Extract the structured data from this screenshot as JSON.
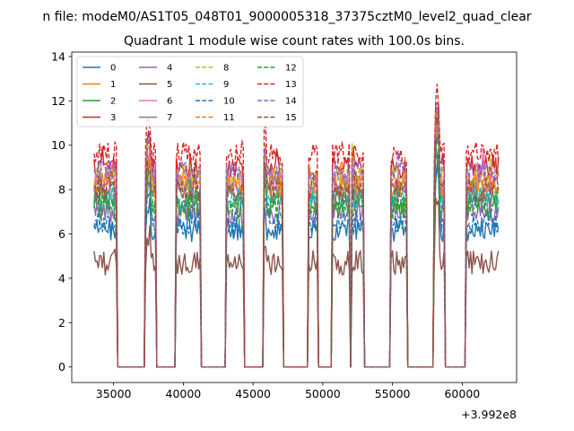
{
  "chart_data": {
    "type": "line",
    "suptitle": "n file: modeM0/AS1T05_048T01_9000005318_37375cztM0_level2_quad_clear",
    "title": "Quadrant 1 module wise count rates with 100.0s bins.",
    "xlabel": "",
    "ylabel": "",
    "x_offset_label": "+3.992e8",
    "xlim": [
      32000,
      63900
    ],
    "ylim": [
      -0.7,
      14.2
    ],
    "xticks": [
      35000,
      40000,
      45000,
      50000,
      55000,
      60000
    ],
    "xtick_labels": [
      "35000",
      "40000",
      "45000",
      "50000",
      "55000",
      "60000"
    ],
    "yticks": [
      0,
      2,
      4,
      6,
      8,
      10,
      12,
      14
    ],
    "ytick_labels": [
      "0",
      "2",
      "4",
      "6",
      "8",
      "10",
      "12",
      "14"
    ],
    "grid": false,
    "legend_position": "top-left",
    "legend_columns": 4,
    "bin_seconds": 100,
    "time_start": 33600,
    "time_end": 62600,
    "on_segments": [
      [
        33600,
        35200
      ],
      [
        37300,
        38000
      ],
      [
        39500,
        41200
      ],
      [
        43100,
        44300
      ],
      [
        45800,
        47100
      ],
      [
        49000,
        49600
      ],
      [
        50700,
        51900
      ],
      [
        52100,
        52900
      ],
      [
        54900,
        56000
      ],
      [
        58000,
        58700
      ],
      [
        60300,
        62600
      ]
    ],
    "series": [
      {
        "name": "0",
        "color": "#1f77b4",
        "dash": "solid",
        "level": 6.2
      },
      {
        "name": "1",
        "color": "#ff7f0e",
        "dash": "solid",
        "level": 8.1
      },
      {
        "name": "2",
        "color": "#2ca02c",
        "dash": "solid",
        "level": 7.4
      },
      {
        "name": "3",
        "color": "#d62728",
        "dash": "solid",
        "level": 9.0
      },
      {
        "name": "4",
        "color": "#9467bd",
        "dash": "solid",
        "level": 7.0
      },
      {
        "name": "5",
        "color": "#8c564b",
        "dash": "solid",
        "level": 4.7
      },
      {
        "name": "6",
        "color": "#e377c2",
        "dash": "solid",
        "level": 8.4
      },
      {
        "name": "7",
        "color": "#7f7f7f",
        "dash": "solid",
        "level": 7.8
      },
      {
        "name": "8",
        "color": "#bcbd22",
        "dash": "dashed",
        "level": 8.6
      },
      {
        "name": "9",
        "color": "#17becf",
        "dash": "dashed",
        "level": 7.6
      },
      {
        "name": "10",
        "color": "#1f77b4",
        "dash": "dashed",
        "level": 6.5
      },
      {
        "name": "11",
        "color": "#ff7f0e",
        "dash": "dashed",
        "level": 8.2
      },
      {
        "name": "12",
        "color": "#2ca02c",
        "dash": "dashed",
        "level": 7.2
      },
      {
        "name": "13",
        "color": "#d62728",
        "dash": "dashed",
        "level": 9.6
      },
      {
        "name": "14",
        "color": "#9467bd",
        "dash": "dashed",
        "level": 8.8
      },
      {
        "name": "15",
        "color": "#8c564b",
        "dash": "dashed",
        "level": 8.0
      }
    ]
  }
}
